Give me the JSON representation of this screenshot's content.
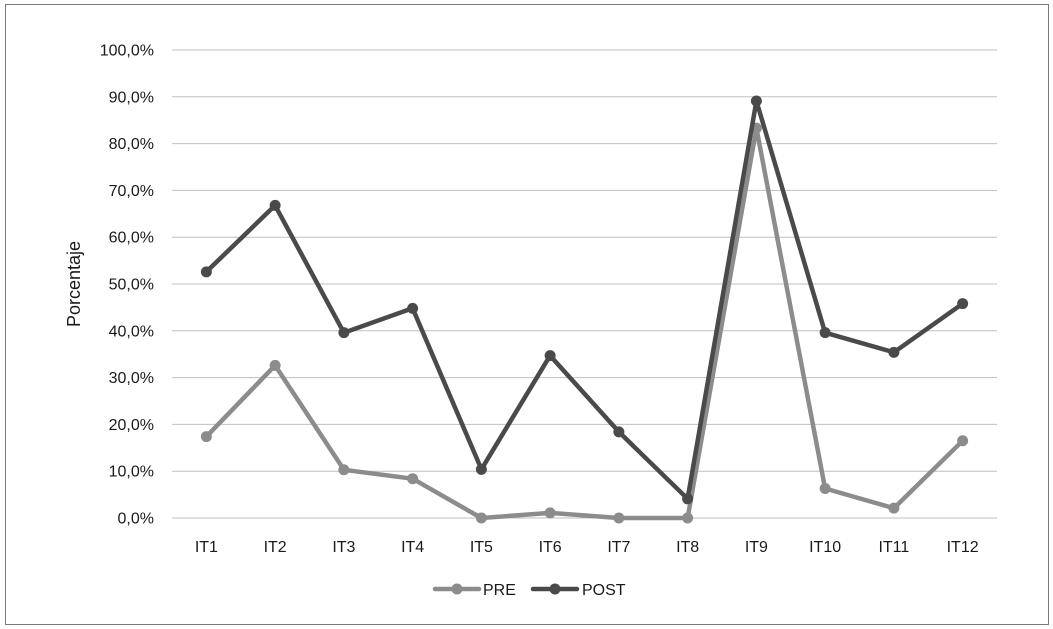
{
  "chart_data": {
    "type": "line",
    "categories": [
      "IT1",
      "IT2",
      "IT3",
      "IT4",
      "IT5",
      "IT6",
      "IT7",
      "IT8",
      "IT9",
      "IT10",
      "IT11",
      "IT12"
    ],
    "series": [
      {
        "name": "PRE",
        "color": "#8c8c8c",
        "values": [
          17.4,
          32.6,
          10.3,
          8.4,
          0.0,
          1.1,
          0.0,
          0.0,
          83.3,
          6.3,
          2.1,
          16.5
        ]
      },
      {
        "name": "POST",
        "color": "#4a4a4a",
        "values": [
          52.6,
          66.8,
          39.6,
          44.8,
          10.4,
          34.7,
          18.4,
          4.1,
          89.1,
          39.6,
          35.4,
          45.8
        ]
      }
    ],
    "ylabel": "Porcentaje",
    "xlabel": "",
    "ylim": [
      0,
      100
    ],
    "ytick_labels": [
      "0,0%",
      "10,0%",
      "20,0%",
      "30,0%",
      "40,0%",
      "50,0%",
      "60,0%",
      "70,0%",
      "80,0%",
      "90,0%",
      "100,0%"
    ],
    "grid": true,
    "legend_position": "bottom-center",
    "gridline_color": "#bfbfbf"
  }
}
